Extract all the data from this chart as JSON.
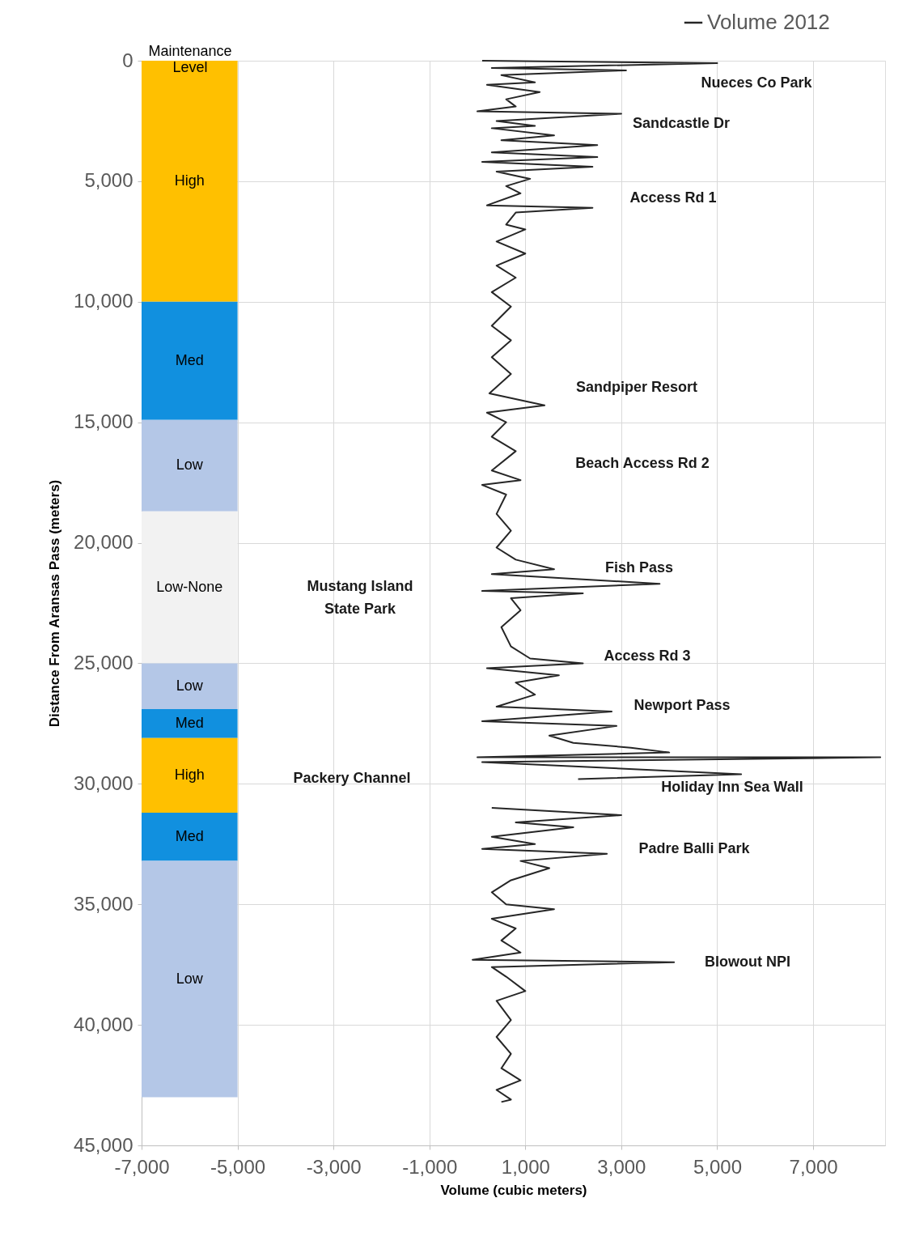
{
  "chart_data": {
    "type": "line",
    "xlabel": "Volume (cubic meters)",
    "ylabel": "Distance From Aransas Pass (meters)",
    "xlim": [
      -7000,
      8500
    ],
    "xticks": [
      {
        "value": -7000,
        "label": "-7,000"
      },
      {
        "value": -5000,
        "label": "-5,000"
      },
      {
        "value": -3000,
        "label": "-3,000"
      },
      {
        "value": -1000,
        "label": "-1,000"
      },
      {
        "value": 1000,
        "label": "1,000"
      },
      {
        "value": 3000,
        "label": "3,000"
      },
      {
        "value": 5000,
        "label": "5,000"
      },
      {
        "value": 7000,
        "label": "7,000"
      }
    ],
    "ylim": [
      45000,
      0
    ],
    "yticks": [
      0,
      {
        "value": 5000,
        "label": "5,000"
      },
      {
        "value": 10000,
        "label": "10,000"
      },
      {
        "value": 15000,
        "label": "15,000"
      },
      {
        "value": 20000,
        "label": "20,000"
      },
      {
        "value": 25000,
        "label": "25,000"
      },
      {
        "value": 30000,
        "label": "30,000"
      },
      {
        "value": 35000,
        "label": "35,000"
      },
      {
        "value": 40000,
        "label": "40,000"
      },
      {
        "value": 45000,
        "label": "45,000"
      }
    ],
    "grid": true,
    "legend": "top right",
    "line_style": "solid",
    "marker": "none",
    "series": [
      {
        "name": "Volume 2012",
        "color": "#262626",
        "x": [
          100,
          5000,
          300,
          3100,
          500,
          1200,
          200,
          1300,
          600,
          800,
          0,
          3000,
          400,
          1200,
          300,
          1600,
          500,
          2500,
          300,
          2500,
          100,
          2400,
          400,
          1100,
          600,
          900,
          200,
          2400,
          800,
          600,
          1000,
          400,
          1000,
          400,
          800,
          300,
          700,
          300,
          700,
          300,
          700,
          250,
          1400,
          200,
          600,
          300,
          800,
          300,
          900,
          100,
          600,
          400,
          700,
          400,
          800,
          1600,
          300,
          3800,
          100,
          2200,
          700,
          900,
          500,
          700,
          1100,
          2200,
          200,
          1700,
          800,
          1200,
          400,
          2800,
          100,
          2900,
          1500,
          2000,
          3200,
          4000,
          0,
          8400,
          100,
          5500,
          2100,
          null,
          300,
          3000,
          800,
          2000,
          300,
          1200,
          100,
          2700,
          900,
          1500,
          700,
          300,
          600,
          1600,
          300,
          800,
          500,
          900,
          -100,
          4100,
          300,
          600,
          1000,
          400,
          700,
          400,
          700,
          500,
          900,
          400,
          700,
          500
        ],
        "values": [
          0,
          100,
          300,
          400,
          600,
          900,
          1000,
          1300,
          1600,
          1900,
          2100,
          2200,
          2500,
          2700,
          2800,
          3100,
          3300,
          3500,
          3800,
          4000,
          4200,
          4400,
          4600,
          4900,
          5200,
          5500,
          6000,
          6100,
          6300,
          6800,
          7000,
          7500,
          8000,
          8500,
          9000,
          9600,
          10200,
          11000,
          11600,
          12300,
          13000,
          13800,
          14300,
          14600,
          15000,
          15600,
          16200,
          17000,
          17400,
          17600,
          18000,
          18800,
          19500,
          20200,
          20700,
          21100,
          21300,
          21700,
          22000,
          22100,
          22300,
          22800,
          23500,
          24300,
          24800,
          25000,
          25200,
          25500,
          25800,
          26300,
          26800,
          27000,
          27400,
          27600,
          28000,
          28300,
          28500,
          28700,
          28900,
          28900,
          29100,
          29600,
          29800,
          null,
          31000,
          31300,
          31600,
          31800,
          32200,
          32500,
          32700,
          32900,
          33200,
          33500,
          34000,
          34500,
          35000,
          35200,
          35600,
          36000,
          36500,
          37000,
          37300,
          37400,
          37600,
          38000,
          38600,
          39000,
          39800,
          40500,
          41200,
          41800,
          42300,
          42700,
          43100,
          43200
        ]
      }
    ],
    "bands": [
      {
        "axis": "y",
        "from": 0,
        "to": 10000,
        "label": "High",
        "color": "#ffc000"
      },
      {
        "axis": "y",
        "from": 10000,
        "to": 14900,
        "label": "Med",
        "color": "#1190df"
      },
      {
        "axis": "y",
        "from": 14900,
        "to": 18700,
        "label": "Low",
        "color": "#b4c7e7"
      },
      {
        "axis": "y",
        "from": 18700,
        "to": 25000,
        "label": "Low-None",
        "color": "#f2f2f2"
      },
      {
        "axis": "y",
        "from": 25000,
        "to": 26900,
        "label": "Low",
        "color": "#b4c7e7"
      },
      {
        "axis": "y",
        "from": 26900,
        "to": 28100,
        "label": "Med",
        "color": "#1190df"
      },
      {
        "axis": "y",
        "from": 28100,
        "to": 31200,
        "label": "High",
        "color": "#ffc000"
      },
      {
        "axis": "y",
        "from": 31200,
        "to": 33200,
        "label": "Med",
        "color": "#1190df"
      },
      {
        "axis": "y",
        "from": 33200,
        "to": 43000,
        "label": "Low",
        "color": "#b4c7e7"
      }
    ],
    "annotations": [
      "Maintenance Level",
      "Nueces Co Park",
      "Sandcastle Dr",
      "Access Rd 1",
      "Sandpiper Resort",
      "Beach Access Rd 2",
      "Fish Pass",
      "Mustang Island\nState Park",
      "Access Rd 3",
      "Newport Pass",
      "Packery Channel",
      "Holiday Inn Sea Wall",
      "Padre Balli Park",
      "Blowout NPI"
    ]
  }
}
